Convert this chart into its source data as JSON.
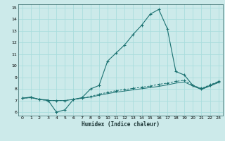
{
  "xlabel": "Humidex (Indice chaleur)",
  "bg_color": "#cceaea",
  "grid_color": "#aadddd",
  "line_color": "#1a7070",
  "xlim": [
    -0.5,
    23.5
  ],
  "ylim": [
    5.7,
    15.3
  ],
  "xticks": [
    0,
    1,
    2,
    3,
    4,
    5,
    6,
    7,
    8,
    9,
    10,
    11,
    12,
    13,
    14,
    15,
    16,
    17,
    18,
    19,
    20,
    21,
    22,
    23
  ],
  "yticks": [
    6,
    7,
    8,
    9,
    10,
    11,
    12,
    13,
    14,
    15
  ],
  "curve1_x": [
    0,
    1,
    2,
    3,
    4,
    5,
    6,
    7,
    8,
    9,
    10,
    11,
    12,
    13,
    14,
    15,
    16,
    17,
    18,
    19,
    20,
    21,
    22,
    23
  ],
  "curve1_y": [
    7.2,
    7.3,
    7.1,
    7.05,
    6.0,
    6.2,
    7.1,
    7.25,
    8.0,
    8.3,
    10.4,
    11.1,
    11.8,
    12.7,
    13.5,
    14.45,
    14.85,
    13.2,
    9.5,
    9.2,
    8.3,
    8.0,
    8.3,
    8.6
  ],
  "curve2_x": [
    0,
    1,
    2,
    3,
    4,
    5,
    6,
    7,
    8,
    9,
    10,
    11,
    12,
    13,
    14,
    15,
    16,
    17,
    18,
    19,
    20,
    21,
    22,
    23
  ],
  "curve2_y": [
    7.2,
    7.25,
    7.1,
    7.0,
    7.0,
    7.0,
    7.1,
    7.2,
    7.35,
    7.55,
    7.7,
    7.85,
    7.95,
    8.05,
    8.15,
    8.25,
    8.4,
    8.5,
    8.65,
    8.75,
    8.3,
    8.05,
    8.35,
    8.65
  ],
  "curve3_x": [
    0,
    1,
    2,
    3,
    4,
    5,
    6,
    7,
    8,
    9,
    10,
    11,
    12,
    13,
    14,
    15,
    16,
    17,
    18,
    19,
    20,
    21,
    22,
    23
  ],
  "curve3_y": [
    7.2,
    7.25,
    7.1,
    7.0,
    7.0,
    7.0,
    7.1,
    7.2,
    7.3,
    7.45,
    7.6,
    7.72,
    7.82,
    7.92,
    8.02,
    8.12,
    8.22,
    8.35,
    8.5,
    8.6,
    8.25,
    7.95,
    8.25,
    8.55
  ]
}
